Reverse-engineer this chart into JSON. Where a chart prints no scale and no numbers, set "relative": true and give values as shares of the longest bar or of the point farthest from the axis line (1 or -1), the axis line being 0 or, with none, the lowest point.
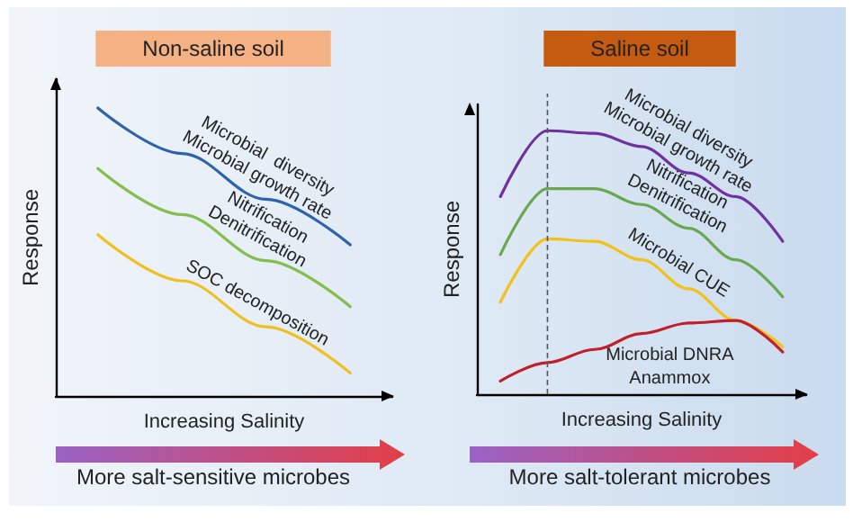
{
  "chart_data": [
    {
      "type": "line",
      "title": "Non-saline soil",
      "xlabel": "Increasing Salinity",
      "ylabel": "Response",
      "categories": [
        null,
        null,
        null,
        null
      ],
      "relative": true,
      "marker": "none",
      "tick_labels": false,
      "annotations": [
        "More salt-sensitive microbes"
      ],
      "series": [
        {
          "name": "Microbial  diversity\nMicrobial growth rate",
          "color": "#2e62ad",
          "values": [
            1,
            0.842,
            0.683,
            0.525
          ]
        },
        {
          "name": "Nitrification\nDenitrification",
          "color": "#86bd4f",
          "values": [
            0.79,
            0.63,
            0.47,
            0.31
          ]
        },
        {
          "name": "SOC decomposition",
          "color": "#f0c020",
          "values": [
            0.56,
            0.4,
            0.24,
            0.08
          ]
        }
      ]
    },
    {
      "type": "line",
      "title": "Saline soil",
      "xlabel": "Increasing Salinity",
      "ylabel": "Response",
      "categories": [
        null,
        null,
        null,
        null,
        null,
        null,
        null
      ],
      "relative": true,
      "marker": "none",
      "tick_labels": false,
      "annotations": [
        "More salt-tolerant microbes"
      ],
      "series": [
        {
          "name": "Microbial diversity\nMicrobial growth rate",
          "color": "#7030a0",
          "values": [
            0.75,
            1,
            0.99,
            0.94,
            0.84,
            0.75,
            0.58
          ]
        },
        {
          "name": "Nitrification\nDenitrification",
          "color": "#6aa84f",
          "values": [
            0.53,
            0.78,
            0.78,
            0.72,
            0.63,
            0.51,
            0.37
          ]
        },
        {
          "name": "Microbial CUE",
          "color": "#f2c21b",
          "values": [
            0.35,
            0.59,
            0.58,
            0.51,
            0.4,
            0.28,
            0.18
          ]
        },
        {
          "name": "Microbial DNRA\nAnammox",
          "color": "#c0202c",
          "values": [
            0.05,
            0.12,
            0.17,
            0.23,
            0.27,
            0.28,
            0.16
          ]
        }
      ]
    }
  ]
}
